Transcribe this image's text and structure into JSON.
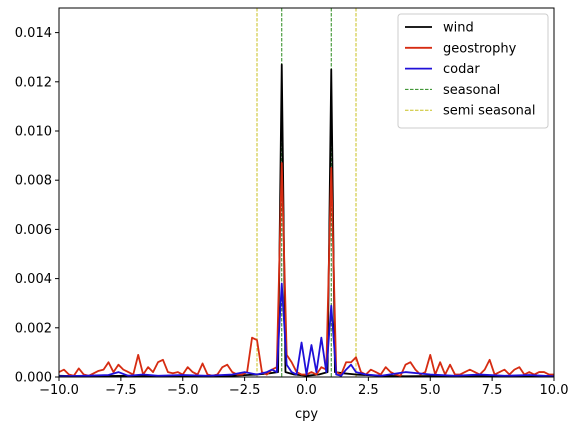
{
  "chart_data": {
    "type": "line",
    "title": "",
    "xlabel": "cpy",
    "ylabel": "",
    "xlim": [
      -10.0,
      10.0
    ],
    "ylim": [
      0.0,
      0.015
    ],
    "grid": false,
    "legend_position": "top-right",
    "x_ticks": [
      "−10.0",
      "−7.5",
      "−5.0",
      "−2.5",
      "0.0",
      "2.5",
      "5.0",
      "7.5",
      "10.0"
    ],
    "y_ticks": [
      "0.000",
      "0.002",
      "0.004",
      "0.006",
      "0.008",
      "0.010",
      "0.012",
      "0.014"
    ],
    "series": [
      {
        "name": "wind",
        "color": "#000000",
        "style": "solid",
        "points": [
          [
            -10,
            5e-05
          ],
          [
            -9,
            3e-05
          ],
          [
            -8,
            4e-05
          ],
          [
            -7,
            5e-05
          ],
          [
            -6,
            3e-05
          ],
          [
            -5,
            4e-05
          ],
          [
            -4,
            3e-05
          ],
          [
            -3,
            5e-05
          ],
          [
            -2,
            0.0001
          ],
          [
            -1.5,
            0.00015
          ],
          [
            -1.15,
            0.0002
          ],
          [
            -1.0,
            0.0127
          ],
          [
            -0.85,
            0.0002
          ],
          [
            -0.5,
            0.0001
          ],
          [
            0,
            5e-05
          ],
          [
            0.5,
            0.0001
          ],
          [
            0.85,
            0.0002
          ],
          [
            1.0,
            0.0125
          ],
          [
            1.15,
            0.0002
          ],
          [
            1.5,
            0.00015
          ],
          [
            2,
            0.0001
          ],
          [
            3,
            5e-05
          ],
          [
            4,
            3e-05
          ],
          [
            5,
            4e-05
          ],
          [
            6,
            3e-05
          ],
          [
            7,
            5e-05
          ],
          [
            8,
            4e-05
          ],
          [
            9,
            3e-05
          ],
          [
            10,
            5e-05
          ]
        ]
      },
      {
        "name": "geostrophy",
        "color": "#d62c12",
        "style": "solid",
        "points": [
          [
            -10,
            0.0002
          ],
          [
            -9.8,
            0.0003
          ],
          [
            -9.6,
            0.0001
          ],
          [
            -9.4,
            5e-05
          ],
          [
            -9.2,
            0.00035
          ],
          [
            -9.0,
            0.0001
          ],
          [
            -8.8,
            5e-05
          ],
          [
            -8.6,
            0.00015
          ],
          [
            -8.4,
            0.00025
          ],
          [
            -8.2,
            0.0003
          ],
          [
            -8.0,
            0.0006
          ],
          [
            -7.8,
            0.0002
          ],
          [
            -7.6,
            0.0005
          ],
          [
            -7.4,
            0.0003
          ],
          [
            -7.2,
            0.0002
          ],
          [
            -7.0,
            0.0001
          ],
          [
            -6.8,
            0.0009
          ],
          [
            -6.6,
            0.0001
          ],
          [
            -6.4,
            0.0004
          ],
          [
            -6.2,
            0.0002
          ],
          [
            -6.0,
            0.0006
          ],
          [
            -5.8,
            0.0007
          ],
          [
            -5.6,
            0.0002
          ],
          [
            -5.4,
            0.00015
          ],
          [
            -5.2,
            0.0002
          ],
          [
            -5.0,
            0.0001
          ],
          [
            -4.8,
            0.0004
          ],
          [
            -4.6,
            0.0002
          ],
          [
            -4.4,
            0.0001
          ],
          [
            -4.2,
            0.00055
          ],
          [
            -4.0,
            0.0001
          ],
          [
            -3.8,
            5e-05
          ],
          [
            -3.6,
            0.0001
          ],
          [
            -3.4,
            0.0004
          ],
          [
            -3.2,
            0.0005
          ],
          [
            -3.0,
            0.0002
          ],
          [
            -2.8,
            0.0001
          ],
          [
            -2.6,
            0.0001
          ],
          [
            -2.4,
            0.0002
          ],
          [
            -2.2,
            0.0016
          ],
          [
            -2.0,
            0.0015
          ],
          [
            -1.8,
            0.0002
          ],
          [
            -1.6,
            0.0001
          ],
          [
            -1.4,
            0.0003
          ],
          [
            -1.2,
            0.0004
          ],
          [
            -1.0,
            0.0087
          ],
          [
            -0.8,
            0.0009
          ],
          [
            -0.6,
            0.0006
          ],
          [
            -0.4,
            0.0002
          ],
          [
            -0.2,
            0.0001
          ],
          [
            0.0,
            0.0001
          ],
          [
            0.2,
            0.0002
          ],
          [
            0.4,
            0.0001
          ],
          [
            0.6,
            0.0004
          ],
          [
            0.8,
            0.0003
          ],
          [
            1.0,
            0.0085
          ],
          [
            1.2,
            0.0002
          ],
          [
            1.4,
            0.0001
          ],
          [
            1.6,
            0.0006
          ],
          [
            1.8,
            0.0006
          ],
          [
            2.0,
            0.0008
          ],
          [
            2.2,
            0.0002
          ],
          [
            2.4,
            0.0001
          ],
          [
            2.6,
            0.0003
          ],
          [
            2.8,
            0.0002
          ],
          [
            3.0,
            0.0001
          ],
          [
            3.2,
            0.0004
          ],
          [
            3.4,
            0.0002
          ],
          [
            3.6,
            0.0001
          ],
          [
            3.8,
            5e-05
          ],
          [
            4.0,
            0.0005
          ],
          [
            4.2,
            0.0006
          ],
          [
            4.4,
            0.0003
          ],
          [
            4.6,
            0.0001
          ],
          [
            4.8,
            0.0002
          ],
          [
            5.0,
            0.0009
          ],
          [
            5.2,
            0.0001
          ],
          [
            5.4,
            0.0006
          ],
          [
            5.6,
            0.0001
          ],
          [
            5.8,
            0.0005
          ],
          [
            6.0,
            0.0001
          ],
          [
            6.2,
            0.0001
          ],
          [
            6.4,
            0.0002
          ],
          [
            6.6,
            0.0003
          ],
          [
            6.8,
            0.0002
          ],
          [
            7.0,
            0.0001
          ],
          [
            7.2,
            0.0003
          ],
          [
            7.4,
            0.0007
          ],
          [
            7.6,
            0.0001
          ],
          [
            7.8,
            0.0002
          ],
          [
            8.0,
            0.0003
          ],
          [
            8.2,
            0.0001
          ],
          [
            8.4,
            0.0003
          ],
          [
            8.6,
            0.0004
          ],
          [
            8.8,
            0.0001
          ],
          [
            9.0,
            0.0002
          ],
          [
            9.2,
            0.0001
          ],
          [
            9.4,
            0.0002
          ],
          [
            9.6,
            0.0002
          ],
          [
            9.8,
            0.0001
          ],
          [
            10.0,
            0.0001
          ]
        ]
      },
      {
        "name": "codar",
        "color": "#2010d8",
        "style": "solid",
        "points": [
          [
            -10,
            3e-05
          ],
          [
            -9.0,
            5e-05
          ],
          [
            -8.0,
            8e-05
          ],
          [
            -7.6,
            0.0002
          ],
          [
            -7.2,
            5e-05
          ],
          [
            -6.6,
            0.0001
          ],
          [
            -6.0,
            5e-05
          ],
          [
            -5.0,
            8e-05
          ],
          [
            -4.0,
            5e-05
          ],
          [
            -3.0,
            0.0001
          ],
          [
            -2.5,
            0.0002
          ],
          [
            -2.0,
            0.0001
          ],
          [
            -1.6,
            0.0002
          ],
          [
            -1.4,
            0.0003
          ],
          [
            -1.2,
            0.0002
          ],
          [
            -1.0,
            0.0038
          ],
          [
            -0.8,
            0.0005
          ],
          [
            -0.6,
            0.0002
          ],
          [
            -0.4,
            0.0001
          ],
          [
            -0.2,
            0.0014
          ],
          [
            0.0,
            0.0001
          ],
          [
            0.2,
            0.0013
          ],
          [
            0.4,
            0.0002
          ],
          [
            0.6,
            0.0016
          ],
          [
            0.8,
            0.0002
          ],
          [
            1.0,
            0.0029
          ],
          [
            1.2,
            0.0001
          ],
          [
            1.4,
            5e-05
          ],
          [
            1.6,
            0.0003
          ],
          [
            1.8,
            0.0005
          ],
          [
            2.0,
            0.0002
          ],
          [
            2.4,
            0.0001
          ],
          [
            3.0,
            5e-05
          ],
          [
            4.0,
            0.0002
          ],
          [
            5.0,
            0.0001
          ],
          [
            6.0,
            5e-05
          ],
          [
            7.0,
            0.0001
          ],
          [
            8.0,
            5e-05
          ],
          [
            9.0,
            8e-05
          ],
          [
            10.0,
            3e-05
          ]
        ]
      }
    ],
    "reference_lines": [
      {
        "name": "seasonal",
        "color": "#2a8a1e",
        "style": "dashed",
        "x": [
          -1.0,
          1.0
        ]
      },
      {
        "name": "semi seasonal",
        "color": "#c8c020",
        "style": "dashed",
        "x": [
          -2.0,
          2.0
        ]
      }
    ]
  }
}
